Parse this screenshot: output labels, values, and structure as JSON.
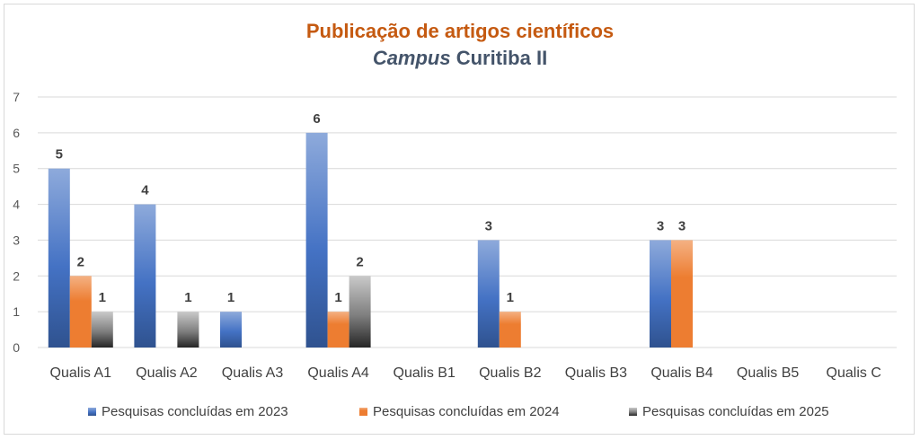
{
  "chart_data": {
    "type": "bar",
    "title": "Publicação de artigos científicos",
    "subtitle_italic": "Campus",
    "subtitle_rest": "Curitiba II",
    "categories": [
      "Qualis A1",
      "Qualis A2",
      "Qualis A3",
      "Qualis A4",
      "Qualis B1",
      "Qualis B2",
      "Qualis B3",
      "Qualis B4",
      "Qualis B5",
      "Qualis C"
    ],
    "series": [
      {
        "name": "Pesquisas concluídas em 2023",
        "values": [
          5,
          4,
          1,
          6,
          null,
          3,
          null,
          3,
          null,
          null
        ],
        "color": "#4472c4"
      },
      {
        "name": "Pesquisas concluídas em 2024",
        "values": [
          2,
          null,
          null,
          1,
          null,
          1,
          null,
          3,
          null,
          null
        ],
        "color": "#ed7d31"
      },
      {
        "name": "Pesquisas concluídas em 2025",
        "values": [
          1,
          1,
          null,
          2,
          null,
          null,
          null,
          null,
          null,
          null
        ],
        "color": "#808080"
      }
    ],
    "ylim": [
      0,
      7
    ],
    "yticks": [
      0,
      1,
      2,
      3,
      4,
      5,
      6,
      7
    ],
    "grid": true,
    "legend_position": "bottom"
  }
}
